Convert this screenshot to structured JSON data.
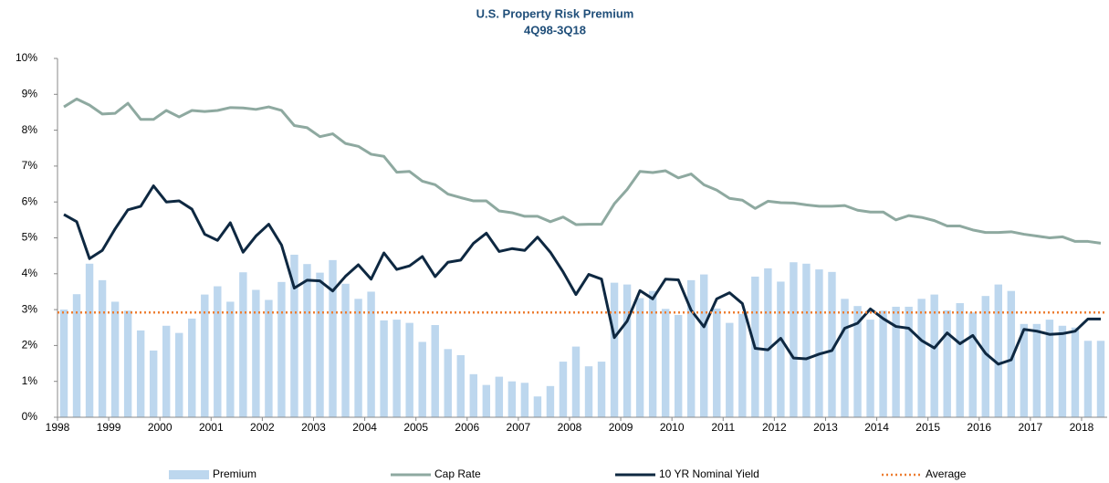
{
  "chart_data": {
    "type": "bar-line",
    "title": "U.S. Property Risk Premium",
    "subtitle": "4Q98-3Q18",
    "categories": [
      "1998",
      null,
      null,
      null,
      "1999",
      null,
      null,
      null,
      "2000",
      null,
      null,
      null,
      "2001",
      null,
      null,
      null,
      "2002",
      null,
      null,
      null,
      "2003",
      null,
      null,
      null,
      "2004",
      null,
      null,
      null,
      "2005",
      null,
      null,
      null,
      "2006",
      null,
      null,
      null,
      "2007",
      null,
      null,
      null,
      "2008",
      null,
      null,
      null,
      "2009",
      null,
      null,
      null,
      "2010",
      null,
      null,
      null,
      "2011",
      null,
      null,
      null,
      "2012",
      null,
      null,
      null,
      "2013",
      null,
      null,
      null,
      "2014",
      null,
      null,
      null,
      "2015",
      null,
      null,
      null,
      "2016",
      null,
      null,
      null,
      "2017",
      null,
      null,
      null,
      "2018",
      null
    ],
    "series": [
      {
        "name": "Premium",
        "kind": "bar",
        "color": "#bdd7ee",
        "values": [
          3.0,
          3.43,
          4.28,
          3.82,
          3.22,
          2.97,
          2.42,
          1.86,
          2.55,
          2.35,
          2.75,
          3.42,
          3.65,
          3.22,
          4.04,
          3.55,
          3.27,
          3.77,
          4.53,
          4.27,
          4.03,
          4.38,
          3.72,
          3.3,
          3.5,
          2.7,
          2.72,
          2.63,
          2.1,
          2.57,
          1.9,
          1.73,
          1.2,
          0.9,
          1.13,
          1.0,
          0.96,
          0.58,
          0.87,
          1.55,
          1.97,
          1.42,
          1.55,
          3.75,
          3.7,
          3.32,
          3.52,
          3.02,
          2.85,
          3.82,
          3.98,
          3.03,
          2.63,
          2.88,
          3.92,
          4.15,
          3.78,
          4.32,
          4.28,
          4.12,
          4.05,
          3.3,
          3.1,
          2.72,
          2.97,
          3.08,
          3.08,
          3.3,
          3.42,
          2.98,
          3.18,
          2.92,
          3.38,
          3.7,
          3.52,
          2.6,
          2.6,
          2.72,
          2.55,
          2.5,
          2.13,
          2.13
        ]
      },
      {
        "name": "Cap Rate",
        "kind": "line",
        "color": "#8ea9a0",
        "values": [
          8.65,
          8.87,
          8.7,
          8.45,
          8.47,
          8.75,
          8.3,
          8.3,
          8.55,
          8.37,
          8.55,
          8.52,
          8.55,
          8.63,
          8.62,
          8.58,
          8.65,
          8.55,
          8.13,
          8.07,
          7.82,
          7.9,
          7.63,
          7.55,
          7.33,
          7.27,
          6.83,
          6.85,
          6.58,
          6.48,
          6.22,
          6.12,
          6.03,
          6.03,
          5.75,
          5.7,
          5.6,
          5.6,
          5.45,
          5.58,
          5.37,
          5.38,
          5.38,
          5.95,
          6.35,
          6.85,
          6.82,
          6.87,
          6.67,
          6.78,
          6.48,
          6.33,
          6.1,
          6.05,
          5.82,
          6.02,
          5.98,
          5.97,
          5.92,
          5.88,
          5.88,
          5.9,
          5.77,
          5.72,
          5.72,
          5.5,
          5.62,
          5.57,
          5.48,
          5.33,
          5.33,
          5.22,
          5.15,
          5.15,
          5.17,
          5.1,
          5.05,
          5.0,
          5.03,
          4.9,
          4.9,
          4.85
        ]
      },
      {
        "name": "10 YR Nominal Yield",
        "kind": "line",
        "color": "#0e2841",
        "values": [
          5.65,
          5.45,
          4.42,
          4.65,
          5.25,
          5.78,
          5.88,
          6.45,
          6.0,
          6.03,
          5.8,
          5.1,
          4.93,
          5.42,
          4.6,
          5.05,
          5.38,
          4.8,
          3.6,
          3.82,
          3.8,
          3.52,
          3.93,
          4.25,
          3.85,
          4.58,
          4.12,
          4.22,
          4.48,
          3.92,
          4.32,
          4.38,
          4.85,
          5.13,
          4.62,
          4.7,
          4.65,
          5.02,
          4.6,
          4.05,
          3.42,
          3.98,
          3.85,
          2.22,
          2.68,
          3.53,
          3.3,
          3.85,
          3.83,
          2.98,
          2.52,
          3.3,
          3.47,
          3.17,
          1.92,
          1.88,
          2.2,
          1.65,
          1.63,
          1.76,
          1.86,
          2.48,
          2.62,
          3.02,
          2.75,
          2.53,
          2.48,
          2.14,
          1.93,
          2.35,
          2.05,
          2.28,
          1.78,
          1.48,
          1.6,
          2.45,
          2.4,
          2.31,
          2.33,
          2.4,
          2.74,
          2.74
        ]
      }
    ],
    "average": {
      "name": "Average",
      "value": 2.92,
      "color": "#ed7d31"
    },
    "ylim": [
      0,
      10
    ],
    "yticks": [
      {
        "value": 0,
        "label": "0%"
      },
      {
        "value": 1,
        "label": "1%"
      },
      {
        "value": 2,
        "label": "2%"
      },
      {
        "value": 3,
        "label": "3%"
      },
      {
        "value": 4,
        "label": "4%"
      },
      {
        "value": 5,
        "label": "5%"
      },
      {
        "value": 6,
        "label": "6%"
      },
      {
        "value": 7,
        "label": "7%"
      },
      {
        "value": 8,
        "label": "8%"
      },
      {
        "value": 9,
        "label": "9%"
      },
      {
        "value": 10,
        "label": "10%"
      }
    ],
    "legend": "bottom"
  }
}
